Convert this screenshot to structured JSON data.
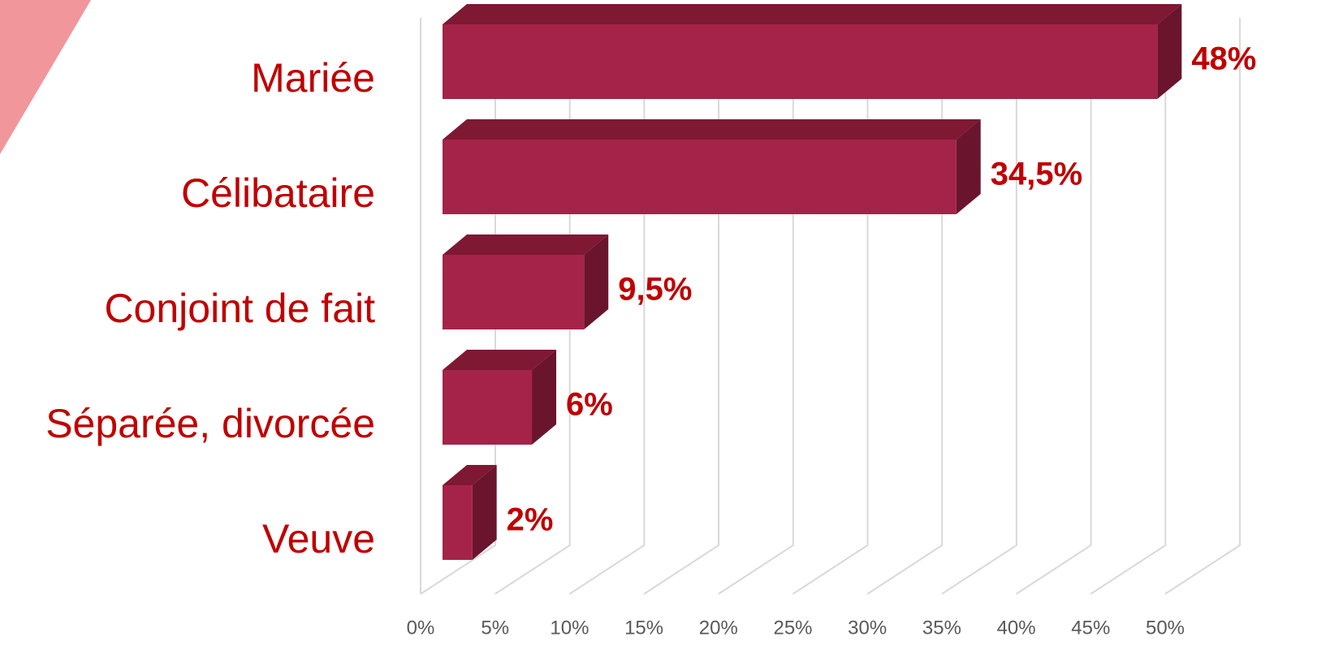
{
  "chart_data": {
    "type": "bar",
    "orientation": "horizontal",
    "three_d": true,
    "categories": [
      "Mariée",
      "Célibataire",
      "Conjoint de fait",
      "Séparée, divorcée",
      "Veuve"
    ],
    "values": [
      48,
      34.5,
      9.5,
      6,
      2
    ],
    "value_labels": [
      "48%",
      "34,5%",
      "9,5%",
      "6%",
      "2%"
    ],
    "color": "#a52349",
    "xlim": [
      0,
      50
    ],
    "xticks": [
      {
        "value": 0,
        "label": "0%"
      },
      {
        "value": 5,
        "label": "5%"
      },
      {
        "value": 10,
        "label": "10%"
      },
      {
        "value": 15,
        "label": "15%"
      },
      {
        "value": 20,
        "label": "20%"
      },
      {
        "value": 25,
        "label": "25%"
      },
      {
        "value": 30,
        "label": "30%"
      },
      {
        "value": 35,
        "label": "35%"
      },
      {
        "value": 40,
        "label": "40%"
      },
      {
        "value": 45,
        "label": "45%"
      },
      {
        "value": 50,
        "label": "50%"
      }
    ],
    "grid": true
  }
}
